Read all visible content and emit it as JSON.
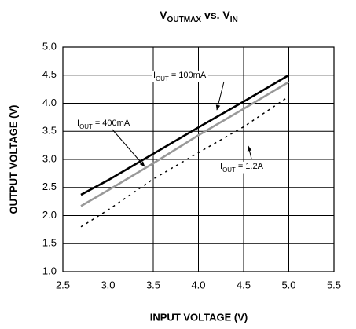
{
  "chart_data": {
    "type": "line",
    "title": [
      {
        "text": "V"
      },
      {
        "text": "OUTMAX",
        "sub": true
      },
      {
        "text": " vs. V"
      },
      {
        "text": "IN",
        "sub": true
      }
    ],
    "xlabel": "INPUT VOLTAGE (V)",
    "ylabel": "OUTPUT VOLTAGE (V)",
    "x": [
      2.7,
      3.0,
      3.5,
      4.0,
      4.5,
      5.0
    ],
    "series": [
      {
        "name": [
          {
            "text": "I"
          },
          {
            "text": "OUT",
            "sub": true
          },
          {
            "text": " = 100mA"
          }
        ],
        "color": "#000000",
        "dashed": false,
        "values": [
          2.37,
          2.63,
          3.1,
          3.57,
          4.03,
          4.5
        ]
      },
      {
        "name": [
          {
            "text": "I"
          },
          {
            "text": "OUT",
            "sub": true
          },
          {
            "text": " = 400mA"
          }
        ],
        "color": "#999999",
        "dashed": false,
        "values": [
          2.17,
          2.45,
          2.93,
          3.43,
          3.9,
          4.38
        ]
      },
      {
        "name": [
          {
            "text": "I"
          },
          {
            "text": "OUT",
            "sub": true
          },
          {
            "text": " = 1.2A"
          }
        ],
        "color": "#000000",
        "dashed": true,
        "values": [
          1.8,
          2.1,
          2.65,
          3.12,
          3.58,
          4.12
        ]
      }
    ],
    "xlim": [
      2.5,
      5.5
    ],
    "xticks": [
      2.5,
      {
        "value": 3,
        "label": "3.0"
      },
      3.5,
      {
        "value": 4,
        "label": "4.0"
      },
      4.5,
      {
        "value": 5,
        "label": "5.0"
      },
      5.5
    ],
    "ylim": [
      1,
      5
    ],
    "yticks": [
      {
        "value": 1,
        "label": "1.0"
      },
      1.5,
      {
        "value": 2,
        "label": "2.0"
      },
      2.5,
      {
        "value": 3,
        "label": "3.0"
      },
      3.5,
      {
        "value": 4,
        "label": "4.0"
      },
      4.5,
      {
        "value": 5,
        "label": "5.0"
      }
    ],
    "grid": true
  }
}
